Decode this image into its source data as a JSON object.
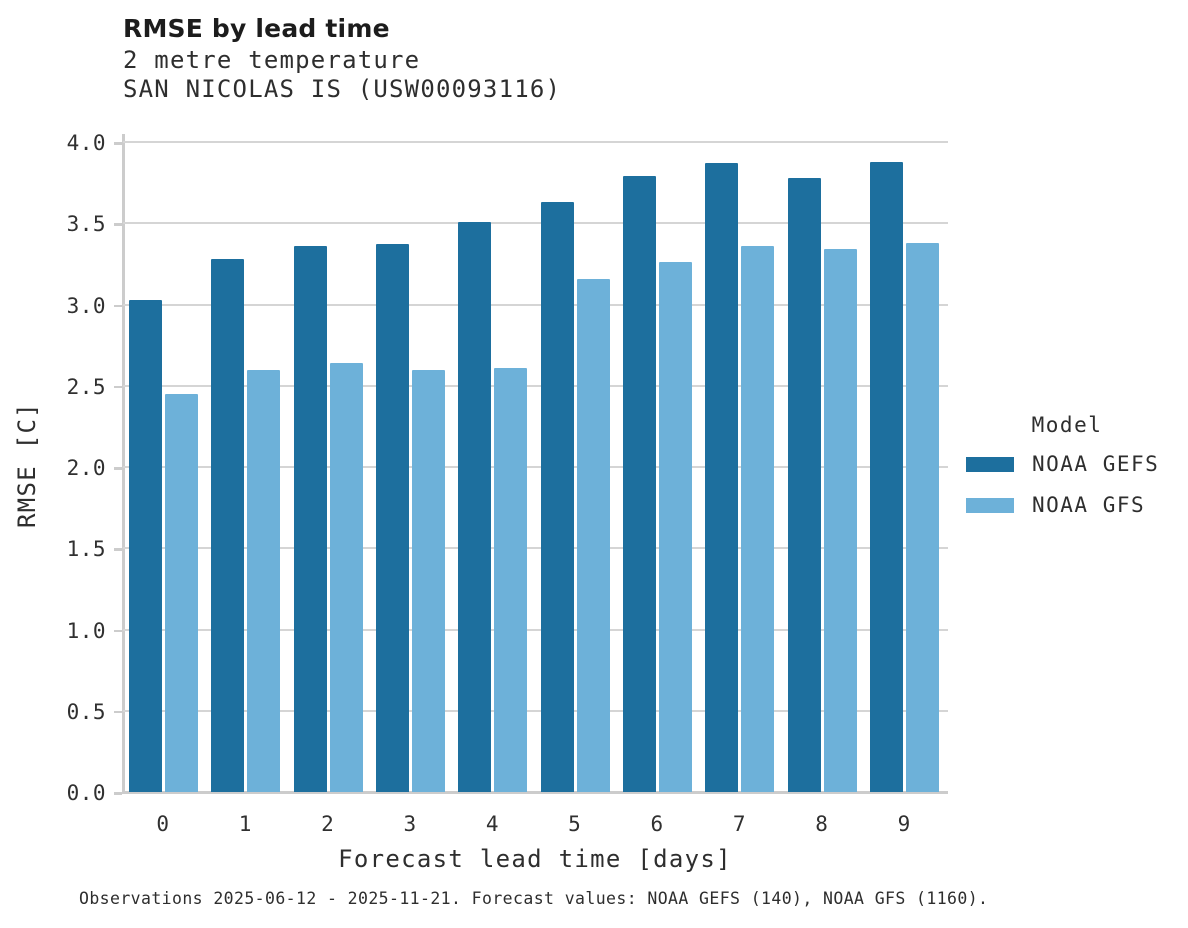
{
  "header": {
    "title": "RMSE by lead time",
    "subtitle_line1": "2 metre temperature",
    "subtitle_line2": "SAN NICOLAS IS (USW00093116)"
  },
  "legend": {
    "title": "Model",
    "entries": [
      {
        "label": "NOAA GEFS",
        "color": "#1d6f9e"
      },
      {
        "label": "NOAA GFS",
        "color": "#6db1d9"
      }
    ]
  },
  "caption": "Observations 2025-06-12 - 2025-11-21. Forecast values: NOAA GEFS (140), NOAA GFS (1160).",
  "chart_data": {
    "type": "bar",
    "title": "RMSE by lead time",
    "subtitle": [
      "2 metre temperature",
      "SAN NICOLAS IS (USW00093116)"
    ],
    "xlabel": "Forecast lead time [days]",
    "ylabel": "RMSE [C]",
    "categories": [
      0,
      1,
      2,
      3,
      4,
      5,
      6,
      7,
      8,
      9
    ],
    "series": [
      {
        "name": "NOAA GEFS",
        "color": "#1d6f9e",
        "values": [
          3.03,
          3.28,
          3.36,
          3.37,
          3.51,
          3.63,
          3.79,
          3.87,
          3.78,
          3.88
        ]
      },
      {
        "name": "NOAA GFS",
        "color": "#6db1d9",
        "values": [
          2.45,
          2.6,
          2.64,
          2.6,
          2.61,
          3.16,
          3.26,
          3.36,
          3.34,
          3.38
        ]
      }
    ],
    "ylim": [
      0,
      4.05
    ],
    "yticks": [
      0.0,
      0.5,
      1.0,
      1.5,
      2.0,
      2.5,
      3.0,
      3.5,
      4.0
    ],
    "grid": true,
    "legend_position": "right",
    "legend_title": "Model"
  }
}
